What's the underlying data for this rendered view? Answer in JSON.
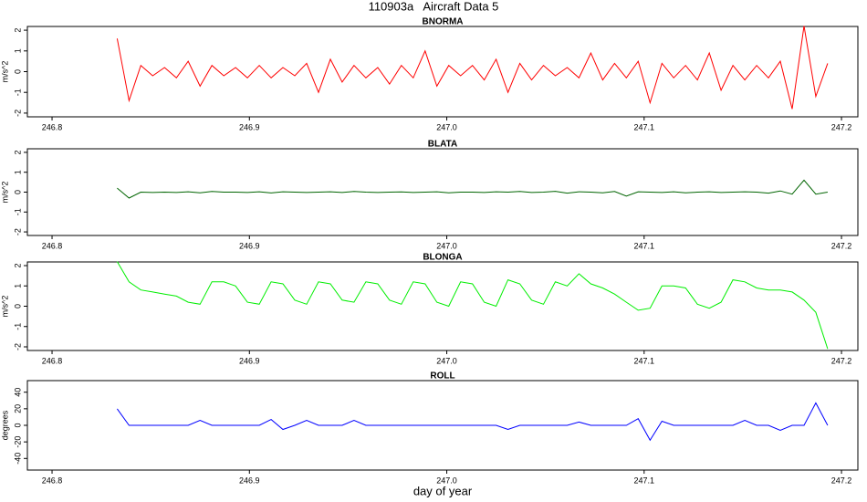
{
  "title": "110903a   Aircraft Data 5",
  "chart_data": [
    {
      "type": "line",
      "title": "BNORMA",
      "ylabel": "m/s^2",
      "x": [
        246.833,
        246.839,
        246.845,
        246.851,
        246.857,
        246.863,
        246.869,
        246.875,
        246.881,
        246.887,
        246.893,
        246.899,
        246.905,
        246.911,
        246.917,
        246.923,
        246.929,
        246.935,
        246.941,
        246.947,
        246.953,
        246.959,
        246.965,
        246.971,
        246.977,
        246.983,
        246.989,
        246.995,
        247.001,
        247.007,
        247.013,
        247.019,
        247.025,
        247.031,
        247.037,
        247.043,
        247.049,
        247.055,
        247.061,
        247.067,
        247.073,
        247.079,
        247.085,
        247.091,
        247.097,
        247.103,
        247.109,
        247.115,
        247.121,
        247.127,
        247.133,
        247.139,
        247.145,
        247.151,
        247.157,
        247.163,
        247.169,
        247.175,
        247.181,
        247.187,
        247.193
      ],
      "series": [
        {
          "name": "BNORMA",
          "color": "#ff0000",
          "values": [
            1.6,
            -1.4,
            0.3,
            -0.2,
            0.2,
            -0.3,
            0.5,
            -0.7,
            0.3,
            -0.2,
            0.2,
            -0.3,
            0.3,
            -0.3,
            0.2,
            -0.2,
            0.4,
            -1.0,
            0.6,
            -0.5,
            0.3,
            -0.3,
            0.2,
            -0.6,
            0.3,
            -0.3,
            1.0,
            -0.7,
            0.3,
            -0.2,
            0.3,
            -0.4,
            0.6,
            -1.0,
            0.4,
            -0.4,
            0.3,
            -0.2,
            0.2,
            -0.3,
            0.9,
            -0.4,
            0.4,
            -0.3,
            0.5,
            -1.5,
            0.4,
            -0.3,
            0.3,
            -0.4,
            0.9,
            -0.9,
            0.3,
            -0.4,
            0.3,
            -0.3,
            0.5,
            -1.8,
            2.2,
            -1.2,
            0.4
          ]
        }
      ],
      "xlim": [
        246.7875,
        247.2083
      ],
      "xticks": [
        246.8,
        246.9,
        {
          "value": 247,
          "label": "247.0"
        },
        247.1,
        247.2
      ],
      "ylim": [
        -2.18,
        2.18
      ],
      "yticks": [
        -2,
        -1,
        0,
        1,
        2
      ]
    },
    {
      "type": "line",
      "title": "BLATA",
      "ylabel": "m/s^2",
      "x": [
        246.833,
        246.839,
        246.845,
        246.851,
        246.857,
        246.863,
        246.869,
        246.875,
        246.881,
        246.887,
        246.893,
        246.899,
        246.905,
        246.911,
        246.917,
        246.923,
        246.929,
        246.935,
        246.941,
        246.947,
        246.953,
        246.959,
        246.965,
        246.971,
        246.977,
        246.983,
        246.989,
        246.995,
        247.001,
        247.007,
        247.013,
        247.019,
        247.025,
        247.031,
        247.037,
        247.043,
        247.049,
        247.055,
        247.061,
        247.067,
        247.073,
        247.079,
        247.085,
        247.091,
        247.097,
        247.103,
        247.109,
        247.115,
        247.121,
        247.127,
        247.133,
        247.139,
        247.145,
        247.151,
        247.157,
        247.163,
        247.169,
        247.175,
        247.181,
        247.187,
        247.193
      ],
      "series": [
        {
          "name": "BLATA",
          "color": "#006400",
          "values": [
            0.2,
            -0.3,
            0.0,
            -0.02,
            0.0,
            -0.02,
            0.02,
            -0.03,
            0.03,
            0.0,
            0.0,
            -0.02,
            0.02,
            -0.04,
            0.02,
            0.0,
            -0.02,
            0.0,
            0.02,
            -0.02,
            0.03,
            0.0,
            -0.02,
            0.0,
            0.01,
            -0.02,
            0.0,
            0.02,
            -0.03,
            0.0,
            0.0,
            -0.02,
            0.02,
            0.0,
            0.03,
            -0.02,
            0.0,
            0.04,
            -0.05,
            0.02,
            0.0,
            -0.03,
            0.03,
            -0.2,
            0.02,
            0.0,
            -0.02,
            0.02,
            -0.03,
            0.0,
            0.02,
            -0.02,
            0.0,
            0.02,
            0.0,
            -0.05,
            0.06,
            -0.1,
            0.6,
            -0.1,
            0.0
          ]
        }
      ],
      "xlim": [
        246.7875,
        247.2083
      ],
      "xticks": [
        246.8,
        246.9,
        {
          "value": 247,
          "label": "247.0"
        },
        247.1,
        247.2
      ],
      "ylim": [
        -2.18,
        2.18
      ],
      "yticks": [
        -2,
        -1,
        0,
        1,
        2
      ]
    },
    {
      "type": "line",
      "title": "BLONGA",
      "ylabel": "m/s^2",
      "x": [
        246.833,
        246.839,
        246.845,
        246.851,
        246.857,
        246.863,
        246.869,
        246.875,
        246.881,
        246.887,
        246.893,
        246.899,
        246.905,
        246.911,
        246.917,
        246.923,
        246.929,
        246.935,
        246.941,
        246.947,
        246.953,
        246.959,
        246.965,
        246.971,
        246.977,
        246.983,
        246.989,
        246.995,
        247.001,
        247.007,
        247.013,
        247.019,
        247.025,
        247.031,
        247.037,
        247.043,
        247.049,
        247.055,
        247.061,
        247.067,
        247.073,
        247.079,
        247.085,
        247.091,
        247.097,
        247.103,
        247.109,
        247.115,
        247.121,
        247.127,
        247.133,
        247.139,
        247.145,
        247.151,
        247.157,
        247.163,
        247.169,
        247.175,
        247.181,
        247.187,
        247.193
      ],
      "series": [
        {
          "name": "BLONGA",
          "color": "#00ee00",
          "values": [
            2.2,
            1.2,
            0.8,
            0.7,
            0.6,
            0.5,
            0.2,
            0.1,
            1.2,
            1.2,
            1.0,
            0.2,
            0.1,
            1.2,
            1.1,
            0.3,
            0.1,
            1.2,
            1.1,
            0.3,
            0.2,
            1.2,
            1.1,
            0.3,
            0.1,
            1.2,
            1.1,
            0.2,
            0.0,
            1.2,
            1.1,
            0.2,
            0.0,
            1.3,
            1.1,
            0.3,
            0.1,
            1.2,
            1.0,
            1.6,
            1.1,
            0.9,
            0.6,
            0.2,
            -0.2,
            -0.1,
            1.0,
            1.0,
            0.9,
            0.1,
            -0.1,
            0.2,
            1.3,
            1.2,
            0.9,
            0.8,
            0.8,
            0.7,
            0.3,
            -0.3,
            -2.1
          ]
        }
      ],
      "xlim": [
        246.7875,
        247.2083
      ],
      "xticks": [
        246.8,
        246.9,
        {
          "value": 247,
          "label": "247.0"
        },
        247.1,
        247.2
      ],
      "ylim": [
        -2.18,
        2.18
      ],
      "yticks": [
        -2,
        -1,
        0,
        1,
        2
      ]
    },
    {
      "type": "line",
      "title": "ROLL",
      "ylabel": "degrees",
      "xlabel": "day of year",
      "x": [
        246.833,
        246.839,
        246.845,
        246.851,
        246.857,
        246.863,
        246.869,
        246.875,
        246.881,
        246.887,
        246.893,
        246.899,
        246.905,
        246.911,
        246.917,
        246.923,
        246.929,
        246.935,
        246.941,
        246.947,
        246.953,
        246.959,
        246.965,
        246.971,
        246.977,
        246.983,
        246.989,
        246.995,
        247.001,
        247.007,
        247.013,
        247.019,
        247.025,
        247.031,
        247.037,
        247.043,
        247.049,
        247.055,
        247.061,
        247.067,
        247.073,
        247.079,
        247.085,
        247.091,
        247.097,
        247.103,
        247.109,
        247.115,
        247.121,
        247.127,
        247.133,
        247.139,
        247.145,
        247.151,
        247.157,
        247.163,
        247.169,
        247.175,
        247.181,
        247.187,
        247.193
      ],
      "series": [
        {
          "name": "ROLL",
          "color": "#0000ff",
          "values": [
            20,
            0,
            0,
            0,
            0,
            0,
            0,
            6,
            0,
            0,
            0,
            0,
            0,
            7,
            -5,
            0,
            6,
            0,
            0,
            0,
            6,
            0,
            0,
            0,
            0,
            0,
            0,
            0,
            0,
            0,
            0,
            0,
            0,
            -5,
            0,
            0,
            0,
            0,
            0,
            4,
            0,
            0,
            0,
            0,
            8,
            -18,
            5,
            0,
            0,
            0,
            0,
            0,
            0,
            6,
            0,
            0,
            -6,
            0,
            0,
            27,
            0
          ]
        }
      ],
      "xlim": [
        246.7875,
        247.2083
      ],
      "xticks": [
        246.8,
        246.9,
        {
          "value": 247,
          "label": "247.0"
        },
        247.1,
        247.2
      ],
      "ylim": [
        -54,
        54
      ],
      "yticks": [
        -40,
        -20,
        0,
        20,
        40
      ]
    }
  ]
}
